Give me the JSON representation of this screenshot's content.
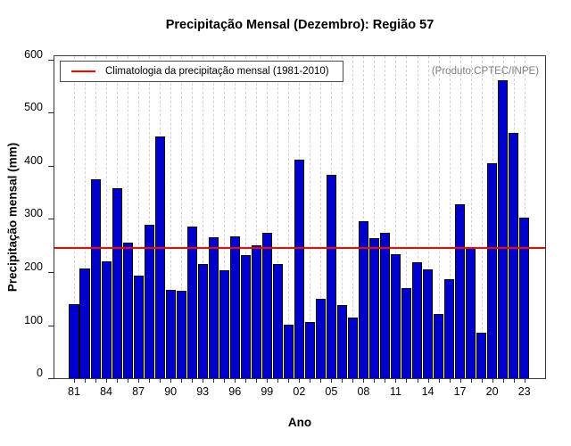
{
  "chart_data": {
    "type": "bar",
    "title": "Precipitação Mensal (Dezembro): Região 57",
    "xlabel": "Ano",
    "ylabel": "Precipitação mensal (mm)",
    "watermark": "(Produto:CPTEC/INPE)",
    "legend_label": "Climatologia da precipitação mensal (1981-2010)",
    "legend_position": "top-left",
    "grid": "vertical-dashed",
    "bar_color": "#0000cd",
    "line_color": "#ff0000",
    "ylim": [
      0,
      600
    ],
    "y_ticks": [
      0,
      100,
      200,
      300,
      400,
      500,
      600
    ],
    "x_tick_label_step": 3,
    "categories": [
      "1981",
      "1982",
      "1983",
      "1984",
      "1985",
      "1986",
      "1987",
      "1988",
      "1989",
      "1990",
      "1991",
      "1992",
      "1993",
      "1994",
      "1995",
      "1996",
      "1997",
      "1998",
      "1999",
      "2000",
      "2001",
      "2002",
      "2003",
      "2004",
      "2005",
      "2006",
      "2007",
      "2008",
      "2009",
      "2010",
      "2011",
      "2012",
      "2013",
      "2014",
      "2015",
      "2016",
      "2017",
      "2018",
      "2019",
      "2020",
      "2021",
      "2022",
      "2023"
    ],
    "x_tick_labels_shown": [
      "81",
      "84",
      "87",
      "90",
      "93",
      "96",
      "99",
      "02",
      "05",
      "08",
      "11",
      "14",
      "17",
      "20",
      "23"
    ],
    "values": [
      140,
      208,
      376,
      222,
      360,
      257,
      195,
      291,
      458,
      168,
      165,
      288,
      217,
      267,
      205,
      268,
      233,
      252,
      276,
      216,
      101,
      414,
      106,
      150,
      385,
      138,
      115,
      298,
      265,
      275,
      235,
      170,
      220,
      207,
      122,
      188,
      330,
      248,
      86,
      407,
      564,
      465,
      304
    ],
    "climatology_line": {
      "value": 245,
      "label": "Climatologia da precipitação mensal (1981-2010)",
      "color": "#ff0000"
    }
  }
}
